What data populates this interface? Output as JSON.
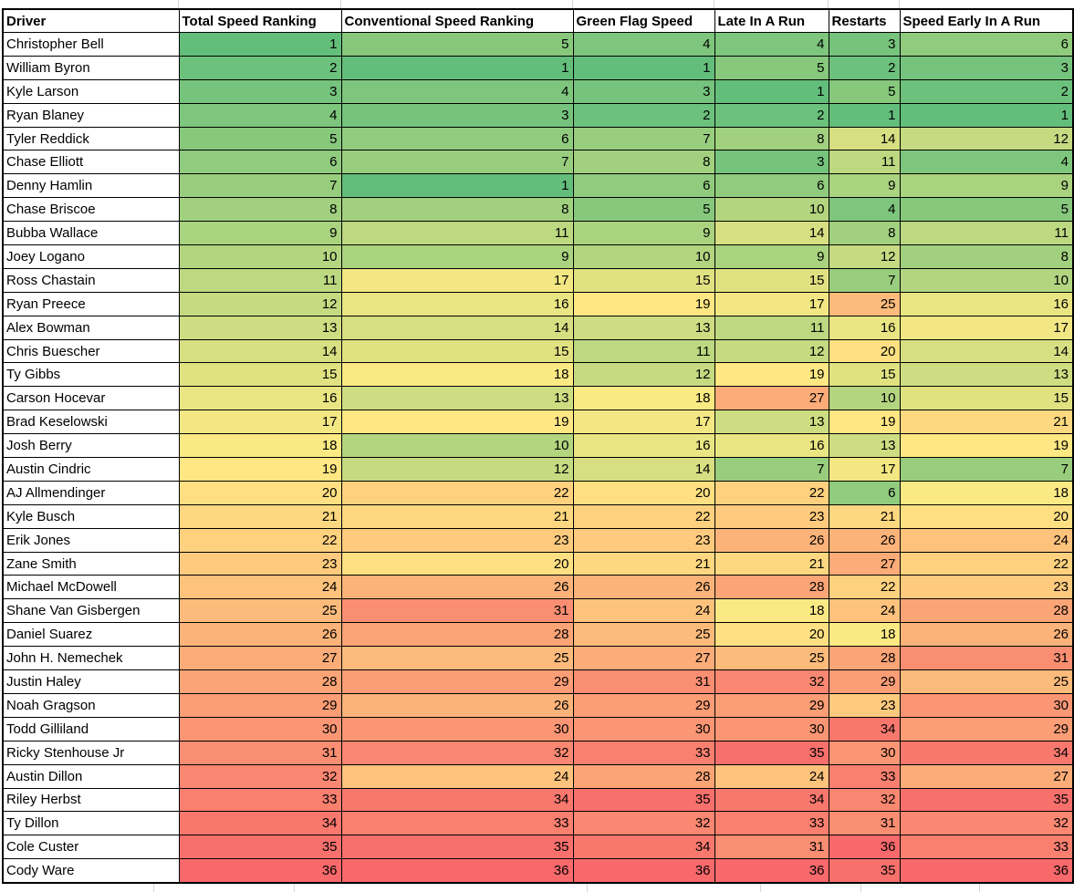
{
  "chart_data": {
    "type": "heatmap",
    "title": "",
    "legend_position": "none",
    "columns": [
      "Driver",
      "Total Speed Ranking",
      "Conventional Speed Ranking",
      "Green Flag Speed",
      "Late In A Run",
      "Restarts",
      "Speed Early In A Run"
    ],
    "value_domain": [
      1,
      36
    ],
    "color_scale": {
      "min_value": 1,
      "mid_value": 18.5,
      "max_value": 36,
      "min_color": "#63BE7B",
      "mid_color": "#FFEB84",
      "max_color": "#F8696B",
      "cell_border_color": "#000000",
      "gridline_color": "#d6d6d6"
    },
    "rows": [
      {
        "driver": "Christopher Bell",
        "ranks": [
          1,
          5,
          4,
          4,
          3,
          6
        ]
      },
      {
        "driver": "William Byron",
        "ranks": [
          2,
          1,
          1,
          5,
          2,
          3
        ]
      },
      {
        "driver": "Kyle Larson",
        "ranks": [
          3,
          4,
          3,
          1,
          5,
          2
        ]
      },
      {
        "driver": "Ryan Blaney",
        "ranks": [
          4,
          3,
          2,
          2,
          1,
          1
        ]
      },
      {
        "driver": "Tyler Reddick",
        "ranks": [
          5,
          6,
          7,
          8,
          14,
          12
        ]
      },
      {
        "driver": "Chase Elliott",
        "ranks": [
          6,
          7,
          8,
          3,
          11,
          4
        ]
      },
      {
        "driver": "Denny Hamlin",
        "ranks": [
          7,
          1,
          6,
          6,
          9,
          9
        ]
      },
      {
        "driver": "Chase Briscoe",
        "ranks": [
          8,
          8,
          5,
          10,
          4,
          5
        ]
      },
      {
        "driver": "Bubba Wallace",
        "ranks": [
          9,
          11,
          9,
          14,
          8,
          11
        ]
      },
      {
        "driver": "Joey Logano",
        "ranks": [
          10,
          9,
          10,
          9,
          12,
          8
        ]
      },
      {
        "driver": "Ross Chastain",
        "ranks": [
          11,
          17,
          15,
          15,
          7,
          10
        ]
      },
      {
        "driver": "Ryan Preece",
        "ranks": [
          12,
          16,
          19,
          17,
          25,
          16
        ]
      },
      {
        "driver": "Alex Bowman",
        "ranks": [
          13,
          14,
          13,
          11,
          16,
          17
        ]
      },
      {
        "driver": "Chris Buescher",
        "ranks": [
          14,
          15,
          11,
          12,
          20,
          14
        ]
      },
      {
        "driver": "Ty Gibbs",
        "ranks": [
          15,
          18,
          12,
          19,
          15,
          13
        ]
      },
      {
        "driver": "Carson Hocevar",
        "ranks": [
          16,
          13,
          18,
          27,
          10,
          15
        ]
      },
      {
        "driver": "Brad Keselowski",
        "ranks": [
          17,
          19,
          17,
          13,
          19,
          21
        ]
      },
      {
        "driver": "Josh Berry",
        "ranks": [
          18,
          10,
          16,
          16,
          13,
          19
        ]
      },
      {
        "driver": "Austin Cindric",
        "ranks": [
          19,
          12,
          14,
          7,
          17,
          7
        ]
      },
      {
        "driver": "AJ Allmendinger",
        "ranks": [
          20,
          22,
          20,
          22,
          6,
          18
        ]
      },
      {
        "driver": "Kyle Busch",
        "ranks": [
          21,
          21,
          22,
          23,
          21,
          20
        ]
      },
      {
        "driver": "Erik Jones",
        "ranks": [
          22,
          23,
          23,
          26,
          26,
          24
        ]
      },
      {
        "driver": "Zane Smith",
        "ranks": [
          23,
          20,
          21,
          21,
          27,
          22
        ]
      },
      {
        "driver": "Michael McDowell",
        "ranks": [
          24,
          26,
          26,
          28,
          22,
          23
        ]
      },
      {
        "driver": "Shane Van Gisbergen",
        "ranks": [
          25,
          31,
          24,
          18,
          24,
          28
        ]
      },
      {
        "driver": "Daniel Suarez",
        "ranks": [
          26,
          28,
          25,
          20,
          18,
          26
        ]
      },
      {
        "driver": "John H. Nemechek",
        "ranks": [
          27,
          25,
          27,
          25,
          28,
          31
        ]
      },
      {
        "driver": "Justin Haley",
        "ranks": [
          28,
          29,
          31,
          32,
          29,
          25
        ]
      },
      {
        "driver": "Noah Gragson",
        "ranks": [
          29,
          26,
          29,
          29,
          23,
          30
        ]
      },
      {
        "driver": "Todd Gilliland",
        "ranks": [
          30,
          30,
          30,
          30,
          34,
          29
        ]
      },
      {
        "driver": "Ricky Stenhouse Jr",
        "ranks": [
          31,
          32,
          33,
          35,
          30,
          34
        ]
      },
      {
        "driver": "Austin Dillon",
        "ranks": [
          32,
          24,
          28,
          24,
          33,
          27
        ]
      },
      {
        "driver": "Riley Herbst",
        "ranks": [
          33,
          34,
          35,
          34,
          32,
          35
        ]
      },
      {
        "driver": "Ty Dillon",
        "ranks": [
          34,
          33,
          32,
          33,
          31,
          32
        ]
      },
      {
        "driver": "Cole Custer",
        "ranks": [
          35,
          35,
          34,
          31,
          36,
          33
        ]
      },
      {
        "driver": "Cody Ware",
        "ranks": [
          36,
          36,
          36,
          36,
          35,
          36
        ]
      }
    ]
  }
}
